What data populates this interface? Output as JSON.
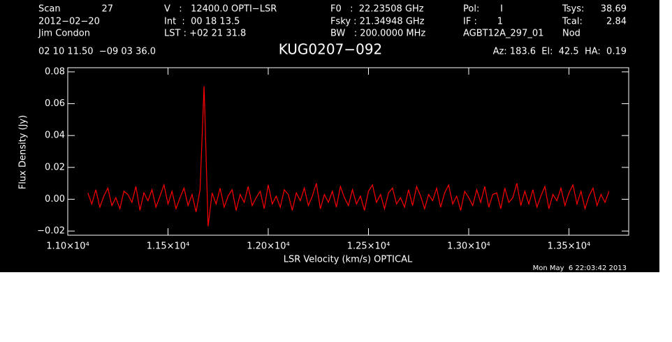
{
  "chart_data": {
    "type": "line",
    "title": "KUG0207−092",
    "x_label": "LSR Velocity (km/s) OPTICAL",
    "y_label": "Flux Density (Jy)",
    "timestamp": "Mon May  6 22:03:42 2013",
    "header": [
      "Scan",
      "27",
      "2012−02−20",
      "Jim Condon",
      "V   :   12400.0 OPTI−LSR",
      "Int  :  00 18 13.5",
      "LST : +02 21 31.8",
      "F0   :  22.23508 GHz",
      "Fsky : 21.34948 GHz",
      "BW   : 200.0000 MHz",
      "Pol:",
      "I",
      "IF :",
      "1",
      "AGBT12A_297_01",
      "Tsys:",
      "38.69",
      "Tcal:",
      "2.84",
      "Nod",
      "02 10 11.50  −09 03 36.0",
      "Az: 183.6  El:  42.5  HA:  0.19"
    ],
    "color": "#ff0000",
    "xlim": [
      11000,
      13798
    ],
    "ylim": [
      -0.0226,
      0.0826
    ],
    "xticks": [
      {
        "value": 11000,
        "label": "1.10×10⁴"
      },
      {
        "value": 11500,
        "label": "1.15×10⁴"
      },
      {
        "value": 12000,
        "label": "1.20×10⁴"
      },
      {
        "value": 12500,
        "label": "1.25×10⁴"
      },
      {
        "value": 13000,
        "label": "1.30×10⁴"
      },
      {
        "value": 13500,
        "label": "1.35×10⁴"
      }
    ],
    "yticks": [
      {
        "value": -0.02,
        "label": "−0.02"
      },
      {
        "value": 0,
        "label": "0.00"
      },
      {
        "value": 0.02,
        "label": "0.02"
      },
      {
        "value": 0.04,
        "label": "0.04"
      },
      {
        "value": 0.06,
        "label": "0.06"
      },
      {
        "value": 0.08,
        "label": "0.08"
      }
    ],
    "x": [
      11100,
      11120,
      11140,
      11160,
      11180,
      11200,
      11220,
      11240,
      11260,
      11280,
      11300,
      11320,
      11340,
      11360,
      11380,
      11400,
      11420,
      11440,
      11460,
      11480,
      11500,
      11520,
      11540,
      11560,
      11580,
      11600,
      11620,
      11640,
      11660,
      11680,
      11700,
      11720,
      11740,
      11760,
      11780,
      11800,
      11820,
      11840,
      11860,
      11880,
      11900,
      11920,
      11940,
      11960,
      11980,
      12000,
      12020,
      12040,
      12060,
      12080,
      12100,
      12120,
      12140,
      12160,
      12180,
      12200,
      12220,
      12240,
      12260,
      12280,
      12300,
      12320,
      12340,
      12360,
      12380,
      12400,
      12420,
      12440,
      12460,
      12480,
      12500,
      12520,
      12540,
      12560,
      12580,
      12600,
      12620,
      12640,
      12660,
      12680,
      12700,
      12720,
      12740,
      12760,
      12780,
      12800,
      12820,
      12840,
      12860,
      12880,
      12900,
      12920,
      12940,
      12960,
      12980,
      13000,
      13020,
      13040,
      13060,
      13080,
      13100,
      13120,
      13140,
      13160,
      13180,
      13200,
      13220,
      13240,
      13260,
      13280,
      13300,
      13320,
      13340,
      13360,
      13380,
      13400,
      13420,
      13440,
      13460,
      13480,
      13500,
      13520,
      13540,
      13560,
      13580,
      13600,
      13620,
      13640,
      13660,
      13680,
      13700
    ],
    "values": [
      0.004,
      -0.003,
      0.006,
      -0.005,
      0.002,
      0.007,
      -0.004,
      0.001,
      -0.006,
      0.005,
      0.003,
      -0.002,
      0.008,
      -0.007,
      0.004,
      -0.001,
      0.006,
      -0.005,
      0.002,
      0.009,
      -0.003,
      0.005,
      -0.006,
      0.001,
      0.007,
      -0.004,
      0.003,
      -0.008,
      0.006,
      0.071,
      -0.017,
      0.004,
      -0.003,
      0.007,
      -0.005,
      0.002,
      0.006,
      -0.007,
      0.003,
      -0.002,
      0.008,
      -0.004,
      0.001,
      0.005,
      -0.006,
      0.009,
      -0.003,
      0.002,
      -0.005,
      0.006,
      0.003,
      -0.007,
      0.004,
      -0.001,
      0.007,
      -0.004,
      0.002,
      0.01,
      -0.006,
      0.003,
      -0.002,
      0.005,
      -0.005,
      0.008,
      0.001,
      -0.004,
      0.006,
      -0.003,
      0.002,
      -0.007,
      0.005,
      0.009,
      -0.002,
      0.003,
      -0.006,
      0.004,
      0.007,
      -0.003,
      0.001,
      -0.005,
      0.006,
      -0.004,
      0.008,
      0.002,
      -0.006,
      0.003,
      -0.001,
      0.007,
      -0.005,
      0.004,
      0.009,
      -0.003,
      0.002,
      -0.007,
      0.005,
      0.001,
      -0.004,
      0.006,
      -0.002,
      0.008,
      -0.005,
      0.003,
      0.004,
      -0.006,
      0.007,
      -0.002,
      0.001,
      0.01,
      -0.004,
      0.005,
      -0.003,
      0.006,
      -0.005,
      0.002,
      0.008,
      -0.006,
      0.003,
      -0.001,
      0.007,
      -0.004,
      0.004,
      0.009,
      -0.003,
      0.005,
      -0.006,
      0.002,
      0.007,
      -0.004,
      0.003,
      -0.002,
      0.005
    ]
  }
}
